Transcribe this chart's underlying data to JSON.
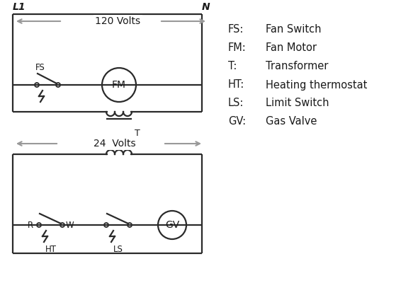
{
  "bg_color": "#ffffff",
  "line_color": "#2a2a2a",
  "arrow_color": "#999999",
  "text_color": "#1a1a1a",
  "legend_items": [
    [
      "FS:",
      "Fan Switch"
    ],
    [
      "FM:",
      "Fan Motor"
    ],
    [
      "T:",
      "Transformer"
    ],
    [
      "HT:",
      "Heating thermostat"
    ],
    [
      "LS:",
      "Limit Switch"
    ],
    [
      "GV:",
      "Gas Valve"
    ]
  ],
  "L1_label": "L1",
  "N_label": "N",
  "volts120_label": "120 Volts",
  "volts24_label": "24  Volts",
  "T_label": "T"
}
